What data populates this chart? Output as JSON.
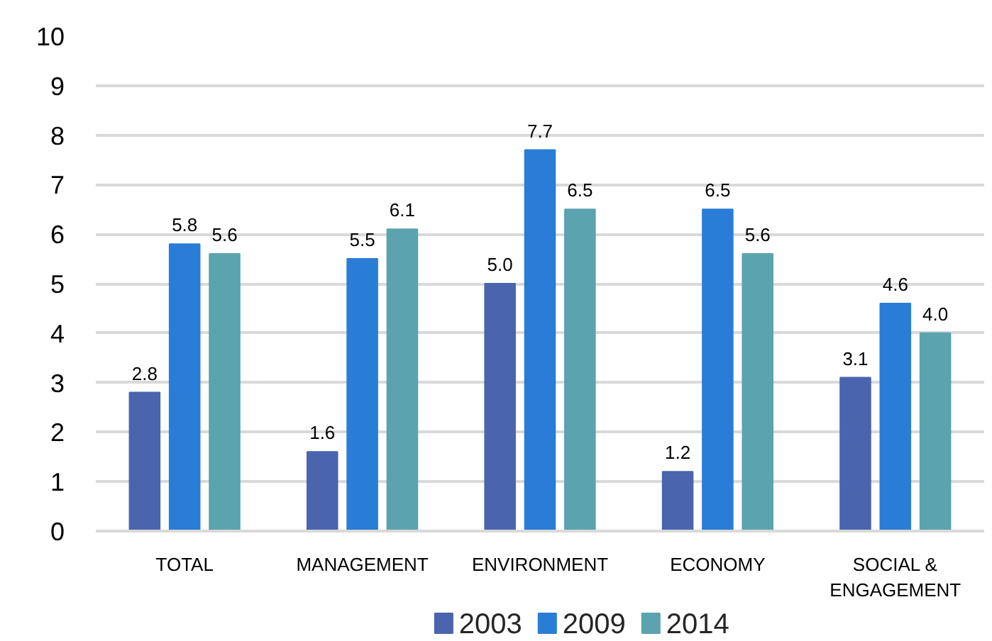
{
  "chart_data": {
    "type": "bar",
    "categories": [
      "TOTAL",
      "MANAGEMENT",
      "ENVIRONMENT",
      "ECONOMY",
      "SOCIAL & ENGAGEMENT"
    ],
    "series": [
      {
        "name": "2003",
        "color": "#4a65ae",
        "values": [
          2.8,
          1.6,
          5.0,
          1.2,
          3.1
        ],
        "value_labels": [
          "2.8",
          "1.6",
          "5.0",
          "1.2",
          "3.1"
        ]
      },
      {
        "name": "2009",
        "color": "#2a7dd6",
        "values": [
          5.8,
          5.5,
          7.7,
          6.5,
          4.6
        ],
        "value_labels": [
          "5.8",
          "5.5",
          "7.7",
          "6.5",
          "4.6"
        ]
      },
      {
        "name": "2014",
        "color": "#5ba3ae",
        "values": [
          5.6,
          6.1,
          6.5,
          5.6,
          4.0
        ],
        "value_labels": [
          "5.6",
          "6.1",
          "6.5",
          "5.6",
          "4.0"
        ]
      }
    ],
    "ylim": [
      0,
      10
    ],
    "yticks": [
      0,
      1,
      2,
      3,
      4,
      5,
      6,
      7,
      8,
      9,
      10
    ],
    "grid": "y",
    "legend": "bottom"
  }
}
